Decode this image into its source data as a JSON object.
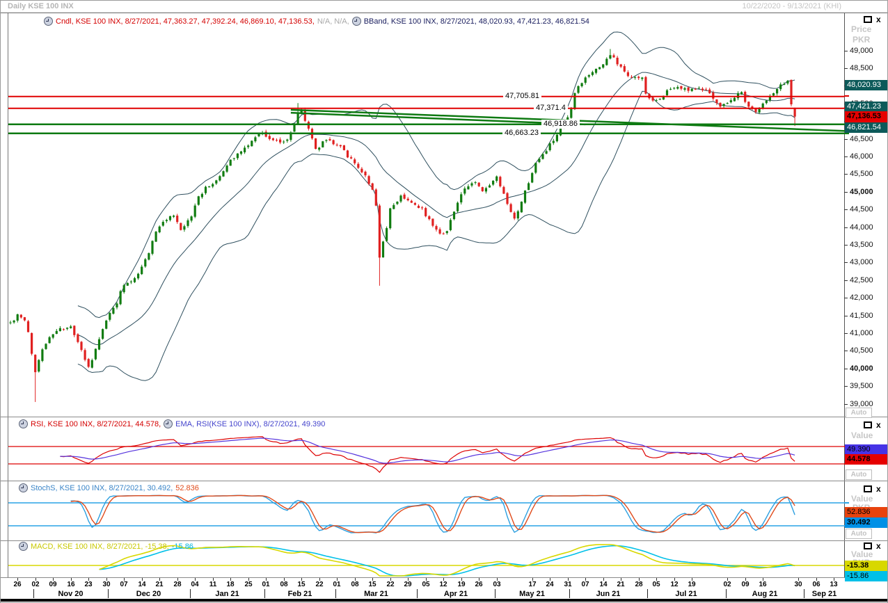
{
  "window": {
    "title": "Daily KSE 100 INX",
    "range": "10/22/2020 - 9/13/2021 (KHI)"
  },
  "legends": {
    "cndl": "Cndl, KSE 100 INX, 8/27/2021, 47,363.27, 47,392.24, 46,869.10, 47,136.53,",
    "cndl_na": "N/A, N/A,",
    "bband": "BBand, KSE 100 INX, 8/27/2021, 48,020.93, 47,421.23, 46,821.54",
    "rsi": "RSI, KSE 100 INX, 8/27/2021, 44.578,",
    "rsi_ema": "EMA, RSI(KSE 100 INX), 8/27/2021, 49.390",
    "stoch_k": "StochS, KSE 100 INX, 8/27/2021, 30.492,",
    "stoch_d": "52.836",
    "macd": "MACD, KSE 100 INX, 8/27/2021, -15.38,",
    "macd_sig": "-15.86"
  },
  "gutter": {
    "price": "Price",
    "pkr": "PKR",
    "value": "Value",
    "auto": "Auto",
    "main_boxes": [
      {
        "text": "48,020.93"
      },
      {
        "text": "47,421.23"
      },
      {
        "text": "47,136.53"
      },
      {
        "text": "46,821.54"
      }
    ],
    "rsi_boxes": [
      {
        "text": "49.390"
      },
      {
        "text": "44.578"
      }
    ],
    "stoch_boxes": [
      {
        "text": "52.836"
      },
      {
        "text": "30.492"
      }
    ],
    "macd_boxes": [
      {
        "text": "-15.38"
      },
      {
        "text": "-15.86"
      }
    ]
  },
  "colors": {
    "candle_up": "#117c11",
    "candle_down": "#e02020",
    "bband": "#2e4f5e",
    "resistance": "#e00000",
    "support": "#0e7a12",
    "rsi_line": "#dd0000",
    "rsi_ema": "#5533dd",
    "stoch_k": "#2b9fe0",
    "stoch_d": "#e04a1a",
    "macd_line": "#d8d800",
    "macd_signal": "#00c0e8",
    "box_teal": "#0d5a5a",
    "box_red": "#e60000"
  },
  "axis": {
    "day_labels": [
      [
        0,
        "26"
      ],
      [
        1,
        "02"
      ],
      [
        2,
        "09"
      ],
      [
        3,
        "16"
      ],
      [
        4,
        "23"
      ],
      [
        5,
        "30"
      ],
      [
        6,
        "07"
      ],
      [
        7,
        "14"
      ],
      [
        8,
        "21"
      ],
      [
        9,
        "28"
      ],
      [
        10,
        "04"
      ],
      [
        11,
        "11"
      ],
      [
        12,
        "18"
      ],
      [
        13,
        "25"
      ],
      [
        14,
        "01"
      ],
      [
        15,
        "08"
      ],
      [
        16,
        "15"
      ],
      [
        17,
        "22"
      ],
      [
        18,
        "01"
      ],
      [
        19,
        "08"
      ],
      [
        20,
        "15"
      ],
      [
        21,
        "22"
      ],
      [
        22,
        "29"
      ],
      [
        23,
        "05"
      ],
      [
        24,
        "12"
      ],
      [
        25,
        "19"
      ],
      [
        26,
        "26"
      ],
      [
        27,
        "03"
      ],
      [
        29,
        "17"
      ],
      [
        30,
        "24"
      ],
      [
        31,
        "31"
      ],
      [
        32,
        "07"
      ],
      [
        33,
        "14"
      ],
      [
        34,
        "21"
      ],
      [
        35,
        "28"
      ],
      [
        36,
        "05"
      ],
      [
        37,
        "12"
      ],
      [
        38,
        "19"
      ],
      [
        40,
        "02"
      ],
      [
        41,
        "09"
      ],
      [
        42,
        "16"
      ],
      [
        44,
        "30"
      ],
      [
        45,
        "06"
      ],
      [
        46,
        "13"
      ]
    ],
    "months": [
      {
        "t": "Nov 20",
        "a": 6.5,
        "b": 27.5
      },
      {
        "t": "Dec 20",
        "a": 27.5,
        "b": 50.5
      },
      {
        "t": "Jan 21",
        "a": 50.5,
        "b": 71.5
      },
      {
        "t": "Feb 21",
        "a": 71.5,
        "b": 91.5
      },
      {
        "t": "Mar 21",
        "a": 91.5,
        "b": 114.5
      },
      {
        "t": "Apr 21",
        "a": 114.5,
        "b": 136.5
      },
      {
        "t": "May 21",
        "a": 136.5,
        "b": 157.5
      },
      {
        "t": "Jun 21",
        "a": 157.5,
        "b": 179.5
      },
      {
        "t": "Jul 21",
        "a": 179.5,
        "b": 201.5
      },
      {
        "t": "Aug 21",
        "a": 201.5,
        "b": 223.5
      },
      {
        "t": "Sep 21",
        "a": 223.5,
        "b": 235
      }
    ]
  },
  "chart_data": {
    "type": "candlestick",
    "instrument": "KSE 100 INX",
    "interval": "Daily",
    "last_date": "8/27/2021",
    "last_candle": {
      "open": 47363.27,
      "high": 47392.24,
      "low": 46869.1,
      "close": 47136.53
    },
    "bband_last": {
      "upper": 48020.93,
      "mid": 47421.23,
      "lower": 46821.54
    },
    "rsi_last": 44.578,
    "rsi_ema_last": 49.39,
    "stoch_last": {
      "k": 30.492,
      "d": 52.836
    },
    "macd_last": {
      "macd": -15.38,
      "signal": -15.86
    },
    "price_axis": {
      "ticks": [
        49000,
        48500,
        48000,
        47500,
        47000,
        46500,
        46000,
        45500,
        45000,
        44500,
        44000,
        43500,
        43000,
        42500,
        42000,
        41500,
        41000,
        40500,
        40000,
        39500,
        39000
      ],
      "bold": [
        45000,
        40000
      ],
      "unit": "PKR"
    },
    "hlines": [
      {
        "value": 47705.81,
        "label": "47,705.81",
        "color": "#e00000"
      },
      {
        "value": 47371.4,
        "label": "47,371.4",
        "color": "#e00000"
      },
      {
        "value": 46918.86,
        "label": "46,918.86",
        "color": "#0e7a12"
      },
      {
        "value": 46663.23,
        "label": "46,663.23",
        "color": "#0e7a12"
      }
    ],
    "trendlines": [
      {
        "d0": 79,
        "p0": 47330,
        "d1": 235,
        "p1": 46730
      },
      {
        "d0": 79,
        "p0": 47245,
        "d1": 162,
        "p1": 46915
      }
    ],
    "indicator_levels": {
      "rsi": [
        70,
        30
      ],
      "stoch": [
        80,
        20
      ]
    },
    "close_anchors": [
      [
        0,
        41300
      ],
      [
        2,
        41500
      ],
      [
        4,
        41350
      ],
      [
        5,
        41000
      ],
      [
        7,
        39900
      ],
      [
        9,
        40600
      ],
      [
        12,
        41000
      ],
      [
        15,
        41150
      ],
      [
        17,
        41150
      ],
      [
        20,
        40550
      ],
      [
        22,
        40000
      ],
      [
        25,
        40800
      ],
      [
        27,
        41400
      ],
      [
        30,
        41900
      ],
      [
        32,
        42400
      ],
      [
        34,
        42500
      ],
      [
        36,
        42700
      ],
      [
        39,
        43300
      ],
      [
        41,
        43900
      ],
      [
        44,
        44250
      ],
      [
        46,
        44300
      ],
      [
        48,
        43900
      ],
      [
        51,
        44300
      ],
      [
        53,
        44900
      ],
      [
        56,
        45200
      ],
      [
        58,
        45300
      ],
      [
        60,
        45600
      ],
      [
        62,
        45900
      ],
      [
        65,
        46200
      ],
      [
        67,
        46300
      ],
      [
        69,
        46600
      ],
      [
        71,
        46700
      ],
      [
        73,
        46500
      ],
      [
        76,
        46400
      ],
      [
        78,
        46500
      ],
      [
        80,
        46900
      ],
      [
        81,
        47250
      ],
      [
        82,
        47300
      ],
      [
        84,
        46800
      ],
      [
        86,
        46200
      ],
      [
        89,
        46500
      ],
      [
        91,
        46400
      ],
      [
        93,
        46300
      ],
      [
        96,
        45900
      ],
      [
        99,
        45600
      ],
      [
        102,
        45100
      ],
      [
        103,
        44600
      ],
      [
        104,
        43100
      ],
      [
        106,
        44000
      ],
      [
        107,
        44500
      ],
      [
        110,
        44900
      ],
      [
        112,
        44800
      ],
      [
        114,
        44600
      ],
      [
        116,
        44500
      ],
      [
        119,
        44100
      ],
      [
        121,
        43850
      ],
      [
        123,
        43900
      ],
      [
        125,
        44500
      ],
      [
        127,
        44900
      ],
      [
        129,
        45200
      ],
      [
        131,
        45300
      ],
      [
        133,
        45000
      ],
      [
        135,
        45200
      ],
      [
        137,
        45400
      ],
      [
        139,
        44900
      ],
      [
        141,
        44400
      ],
      [
        142,
        44200
      ],
      [
        144,
        44700
      ],
      [
        146,
        45300
      ],
      [
        148,
        45800
      ],
      [
        151,
        46200
      ],
      [
        154,
        46600
      ],
      [
        156,
        46900
      ],
      [
        158,
        47300
      ],
      [
        159,
        47800
      ],
      [
        161,
        48100
      ],
      [
        163,
        48300
      ],
      [
        165,
        48500
      ],
      [
        167,
        48600
      ],
      [
        169,
        48900
      ],
      [
        170,
        48800
      ],
      [
        172,
        48500
      ],
      [
        174,
        48300
      ],
      [
        176,
        48250
      ],
      [
        178,
        48200
      ],
      [
        179,
        47800
      ],
      [
        181,
        47550
      ],
      [
        183,
        47650
      ],
      [
        185,
        47900
      ],
      [
        188,
        48000
      ],
      [
        191,
        47900
      ],
      [
        194,
        48000
      ],
      [
        196,
        47850
      ],
      [
        198,
        47700
      ],
      [
        200,
        47400
      ],
      [
        202,
        47550
      ],
      [
        204,
        47700
      ],
      [
        206,
        47800
      ],
      [
        208,
        47400
      ],
      [
        210,
        47300
      ],
      [
        212,
        47500
      ],
      [
        214,
        47700
      ],
      [
        216,
        47900
      ],
      [
        218,
        48100
      ],
      [
        219,
        48150
      ],
      [
        220,
        47500
      ],
      [
        221,
        47136.53
      ]
    ],
    "extremes": [
      {
        "d": 7,
        "low": 39060
      },
      {
        "d": 104,
        "low": 42350
      },
      {
        "d": 169,
        "high": 49050
      },
      {
        "d": 81,
        "high": 47520
      }
    ]
  }
}
